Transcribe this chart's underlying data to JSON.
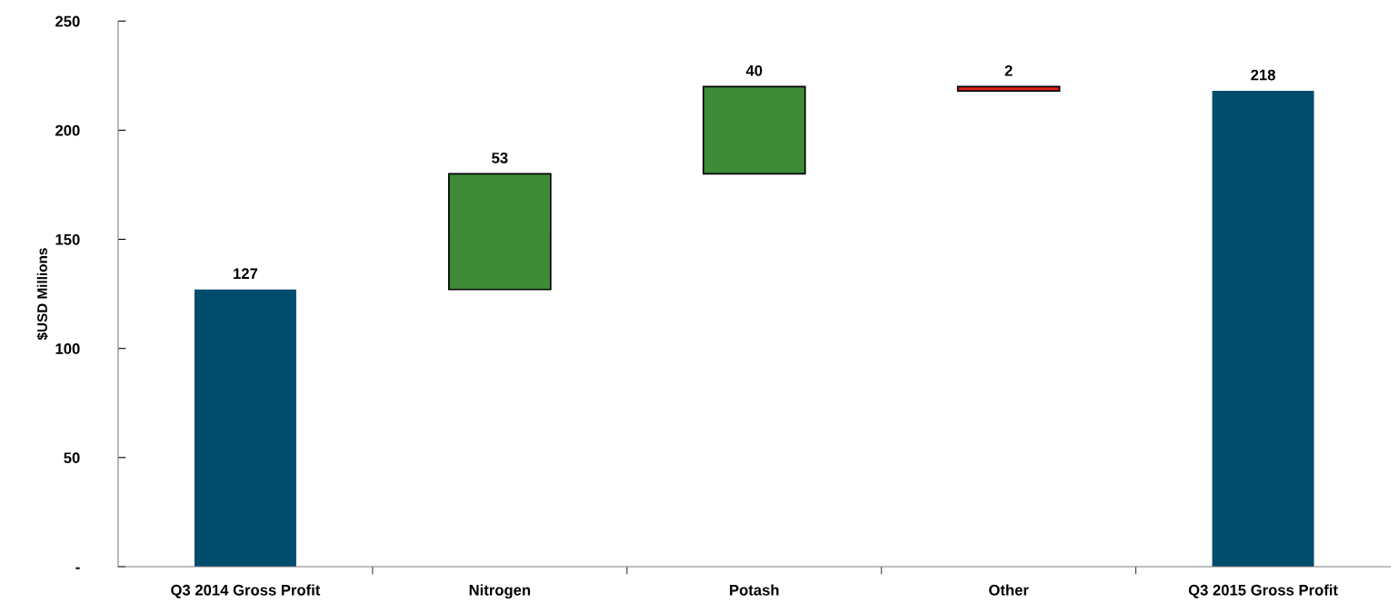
{
  "chart_data": {
    "type": "bar",
    "ylabel": "$USD Millions",
    "categories": [
      "Q3 2014 Gross Profit",
      "Nitrogen",
      "Potash",
      "Other",
      "Q3 2015 Gross Profit"
    ],
    "values": [
      127,
      53,
      40,
      2,
      218
    ],
    "base": [
      0,
      127,
      180,
      218,
      0
    ],
    "colors": [
      "#004c6d",
      "#3d8b37",
      "#3d8b37",
      "#e0201b",
      "#004c6d"
    ],
    "data_labels": true,
    "ylim": [
      0,
      250
    ],
    "yticks": [
      {
        "value": 0,
        "label": "-"
      },
      50,
      100,
      150,
      200,
      250
    ],
    "grid": false,
    "legend": false
  }
}
